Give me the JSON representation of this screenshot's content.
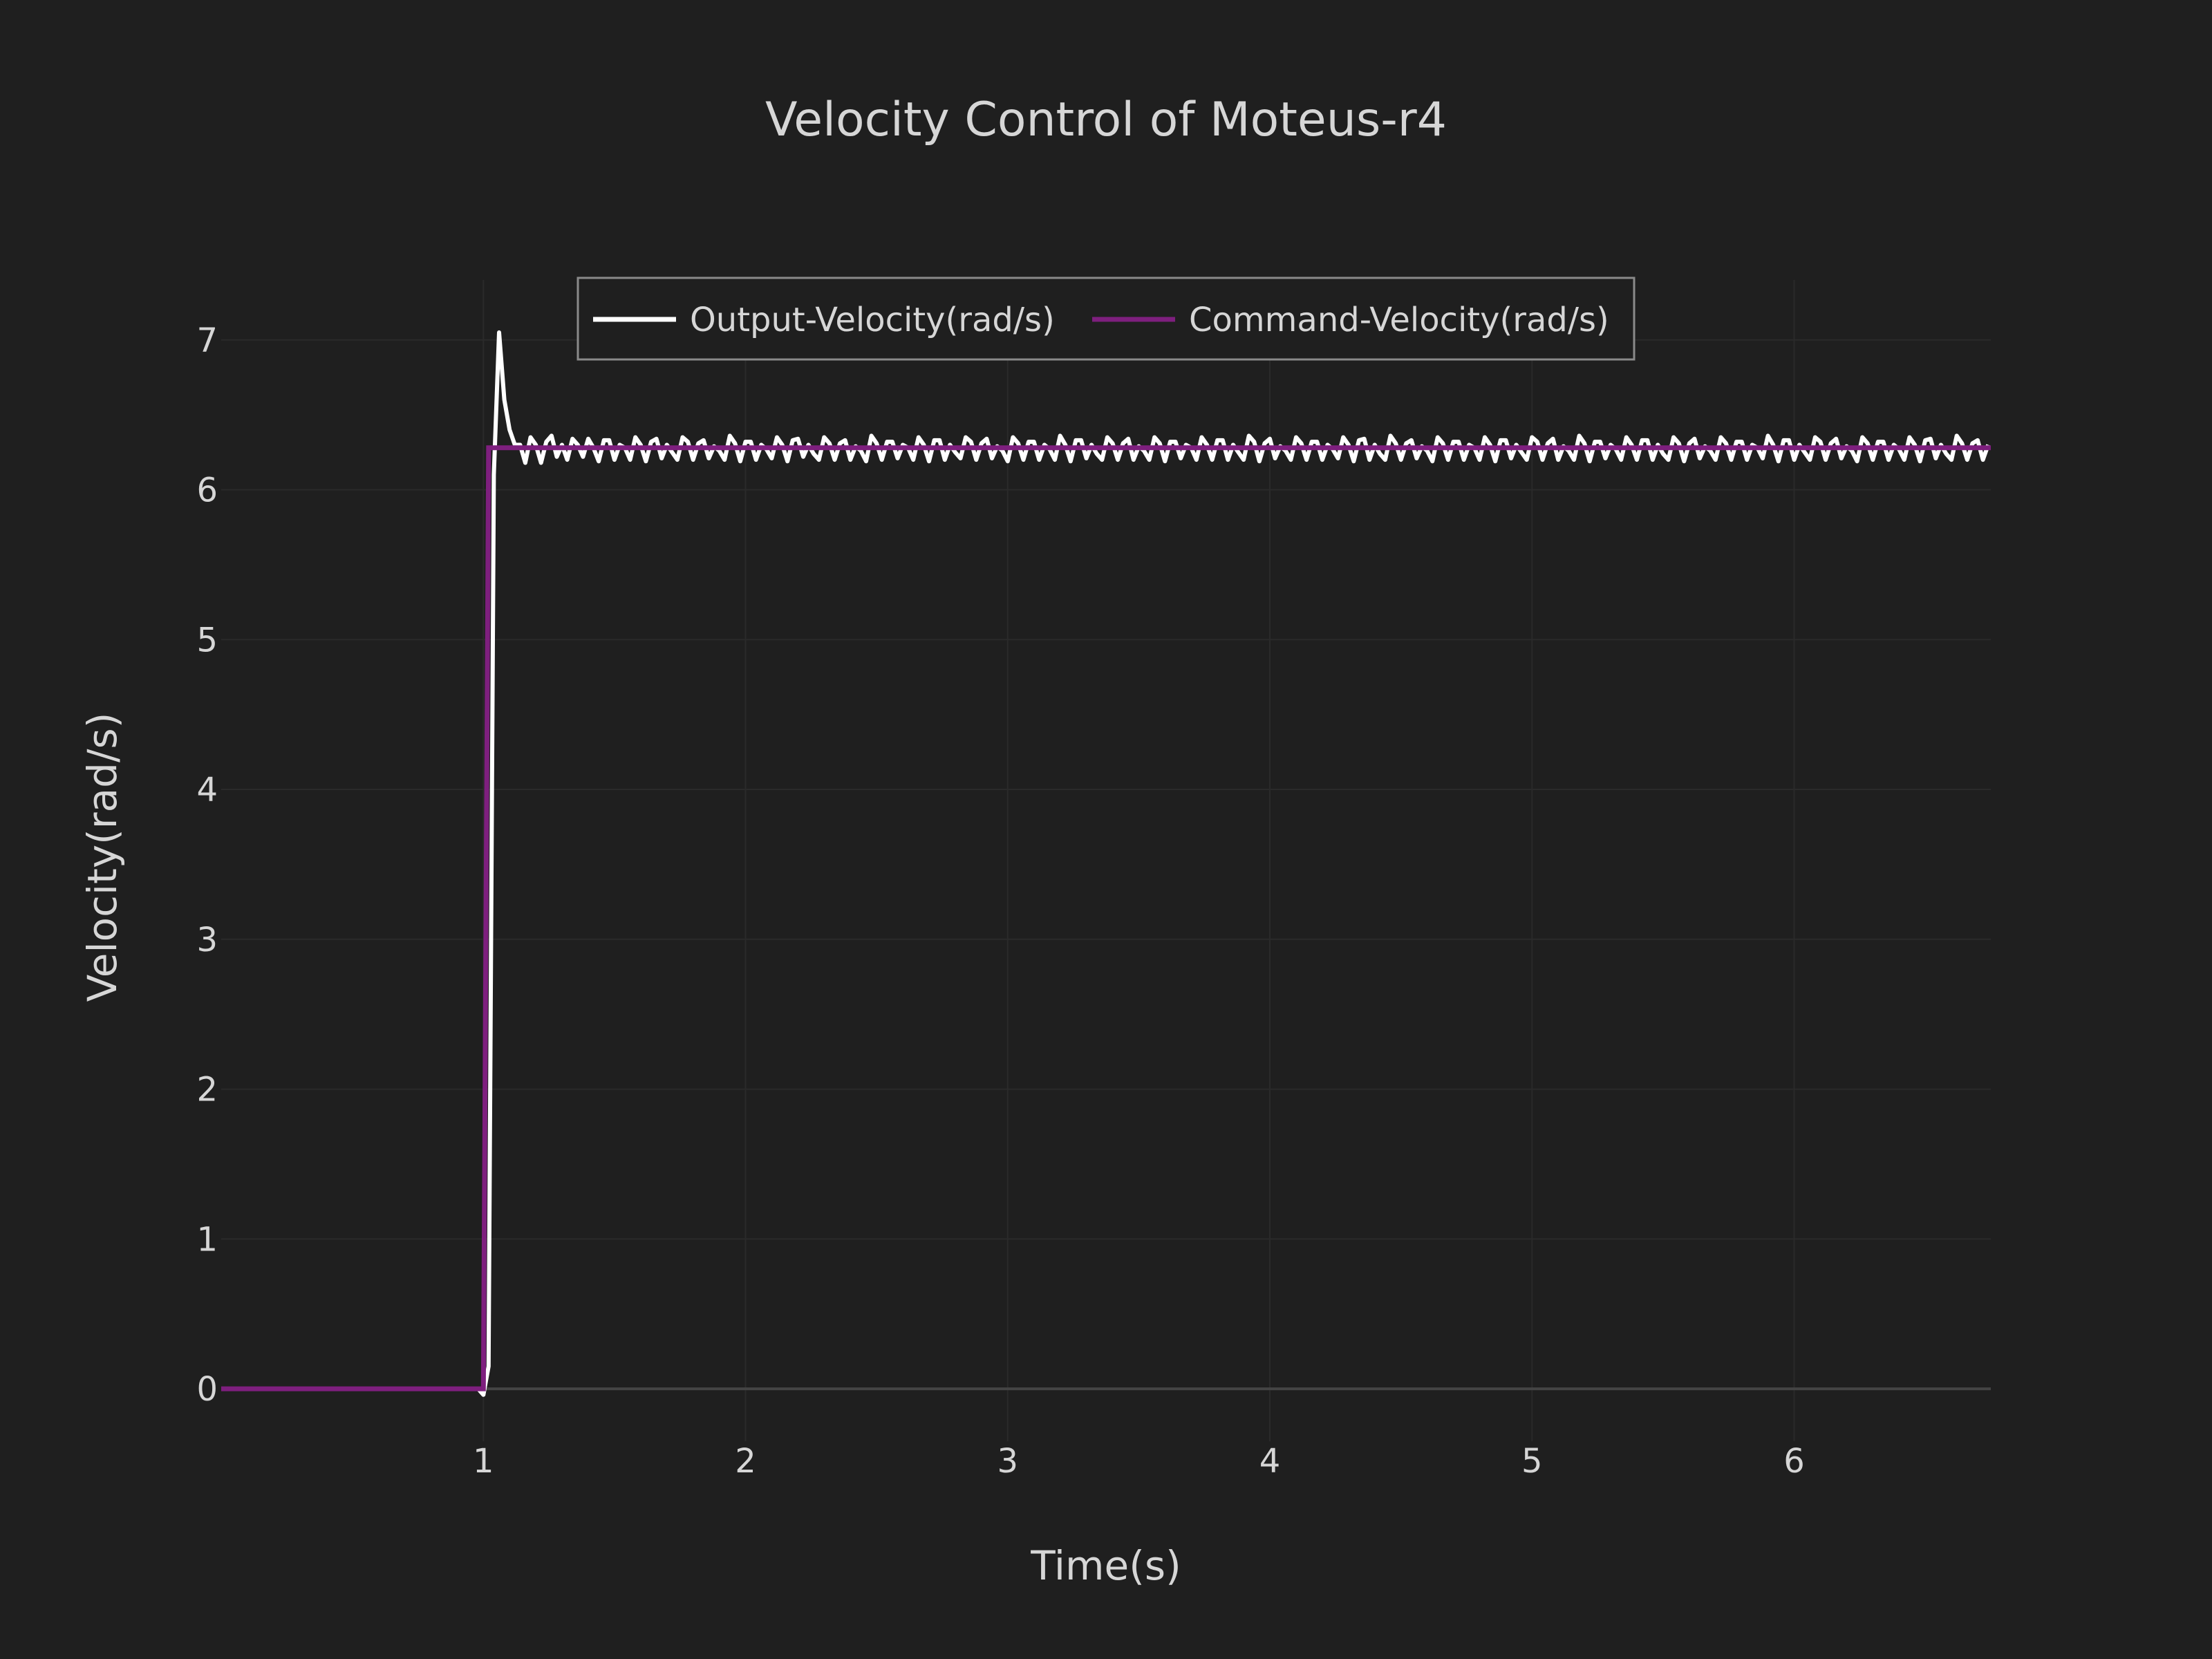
{
  "chart_data": {
    "type": "line",
    "title": "Velocity Control of Moteus-r4",
    "xlabel": "Time(s)",
    "ylabel": "Velocity(rad/s)",
    "xlim": [
      0,
      6.75
    ],
    "ylim": [
      -0.35,
      7.4
    ],
    "x_ticks": [
      1,
      2,
      3,
      4,
      5,
      6
    ],
    "y_ticks": [
      0,
      1,
      2,
      3,
      4,
      5,
      6,
      7
    ],
    "grid": true,
    "legend_position": "top-center",
    "colors": {
      "background": "#1f1f1f",
      "grid": "#2a2a2a",
      "zeroline": "#444444",
      "text": "#d6d6d6",
      "output": "#ffffff",
      "command": "#7e1f7e"
    },
    "series": [
      {
        "name": "Output-Velocity(rad/s)",
        "color": "#ffffff",
        "x_start": 0,
        "x_step": 0.02,
        "values": [
          0,
          0,
          0,
          0,
          0,
          0,
          0,
          0,
          0,
          0,
          0,
          0,
          0,
          0,
          0,
          0,
          0,
          0,
          0,
          0,
          0,
          0,
          0,
          0,
          0,
          0,
          0,
          0,
          0,
          0,
          0,
          0,
          0,
          0,
          0,
          0,
          0,
          0,
          0,
          0,
          0,
          0,
          0,
          0,
          0,
          0,
          0,
          0,
          0,
          0,
          -0.04,
          0.15,
          6.1,
          7.05,
          6.6,
          6.4,
          6.3,
          6.3,
          6.18,
          6.35,
          6.3,
          6.18,
          6.32,
          6.36,
          6.22,
          6.3,
          6.2,
          6.34,
          6.3,
          6.22,
          6.34,
          6.28,
          6.19,
          6.33,
          6.33,
          6.2,
          6.3,
          6.28,
          6.2,
          6.35,
          6.3,
          6.19,
          6.32,
          6.34,
          6.21,
          6.3,
          6.25,
          6.2,
          6.35,
          6.32,
          6.2,
          6.31,
          6.33,
          6.21,
          6.29,
          6.26,
          6.2,
          6.36,
          6.31,
          6.19,
          6.32,
          6.32,
          6.2,
          6.3,
          6.27,
          6.21,
          6.35,
          6.3,
          6.19,
          6.33,
          6.34,
          6.22,
          6.3,
          6.24,
          6.2,
          6.35,
          6.31,
          6.2,
          6.31,
          6.33,
          6.2,
          6.29,
          6.26,
          6.19,
          6.36,
          6.31,
          6.2,
          6.32,
          6.32,
          6.21,
          6.3,
          6.28,
          6.2,
          6.35,
          6.3,
          6.19,
          6.33,
          6.33,
          6.2,
          6.3,
          6.25,
          6.21,
          6.35,
          6.32,
          6.2,
          6.31,
          6.34,
          6.21,
          6.29,
          6.26,
          6.19,
          6.35,
          6.31,
          6.2,
          6.32,
          6.32,
          6.2,
          6.3,
          6.27,
          6.2,
          6.36,
          6.3,
          6.19,
          6.33,
          6.33,
          6.21,
          6.3,
          6.24,
          6.2,
          6.35,
          6.31,
          6.2,
          6.31,
          6.34,
          6.2,
          6.29,
          6.26,
          6.2,
          6.35,
          6.31,
          6.19,
          6.32,
          6.32,
          6.21,
          6.3,
          6.28,
          6.2,
          6.35,
          6.3,
          6.2,
          6.33,
          6.33,
          6.2,
          6.3,
          6.25,
          6.2,
          6.36,
          6.32,
          6.19,
          6.31,
          6.34,
          6.21,
          6.29,
          6.26,
          6.2,
          6.35,
          6.31,
          6.2,
          6.32,
          6.32,
          6.2,
          6.3,
          6.27,
          6.21,
          6.35,
          6.3,
          6.19,
          6.33,
          6.34,
          6.2,
          6.3,
          6.24,
          6.2,
          6.36,
          6.31,
          6.2,
          6.31,
          6.33,
          6.21,
          6.29,
          6.26,
          6.19,
          6.35,
          6.31,
          6.2,
          6.32,
          6.32,
          6.2,
          6.3,
          6.28,
          6.2,
          6.35,
          6.3,
          6.19,
          6.33,
          6.33,
          6.21,
          6.3,
          6.25,
          6.2,
          6.35,
          6.32,
          6.2,
          6.31,
          6.34,
          6.2,
          6.29,
          6.26,
          6.2,
          6.36,
          6.31,
          6.19,
          6.32,
          6.32,
          6.21,
          6.3,
          6.27,
          6.2,
          6.35,
          6.3,
          6.2,
          6.33,
          6.33,
          6.2,
          6.3,
          6.24,
          6.2,
          6.35,
          6.31,
          6.19,
          6.31,
          6.34,
          6.21,
          6.29,
          6.26,
          6.2,
          6.35,
          6.31,
          6.2,
          6.32,
          6.32,
          6.2,
          6.3,
          6.28,
          6.21,
          6.36,
          6.3,
          6.19,
          6.33,
          6.33,
          6.2,
          6.3,
          6.25,
          6.2,
          6.35,
          6.32,
          6.2,
          6.31,
          6.34,
          6.21,
          6.29,
          6.26,
          6.19,
          6.35,
          6.31,
          6.2,
          6.32,
          6.32,
          6.2,
          6.3,
          6.27,
          6.2,
          6.35,
          6.3,
          6.19,
          6.33,
          6.34,
          6.21,
          6.3,
          6.24,
          6.2,
          6.36,
          6.31,
          6.2,
          6.31,
          6.33,
          6.2,
          6.3
        ]
      },
      {
        "name": "Command-Velocity(rad/s)",
        "color": "#7e1f7e",
        "x": [
          0,
          1.0,
          1.02,
          6.75
        ],
        "values": [
          0,
          0,
          6.28,
          6.28
        ]
      }
    ]
  }
}
